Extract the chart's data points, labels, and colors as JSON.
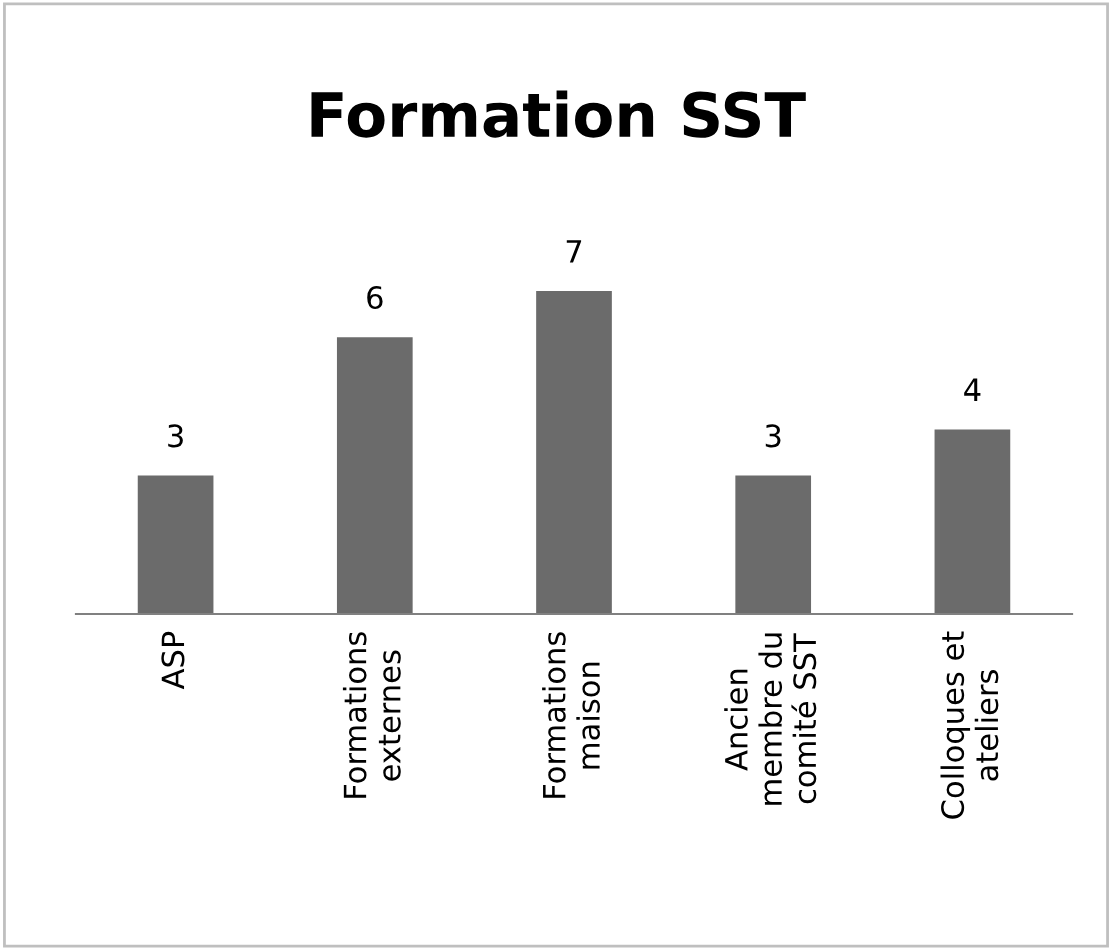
{
  "chart_data": {
    "type": "bar",
    "title": "Formation SST",
    "categories": [
      "ASP",
      "Formations\nexternes",
      "Formations\nmaison",
      "Ancien\nmembre du\ncomité SST",
      "Colloques et\nateliers"
    ],
    "values": [
      3,
      6,
      7,
      3,
      4
    ],
    "color": "#6b6b6b",
    "data_labels": true,
    "grid": false,
    "legend": false
  }
}
